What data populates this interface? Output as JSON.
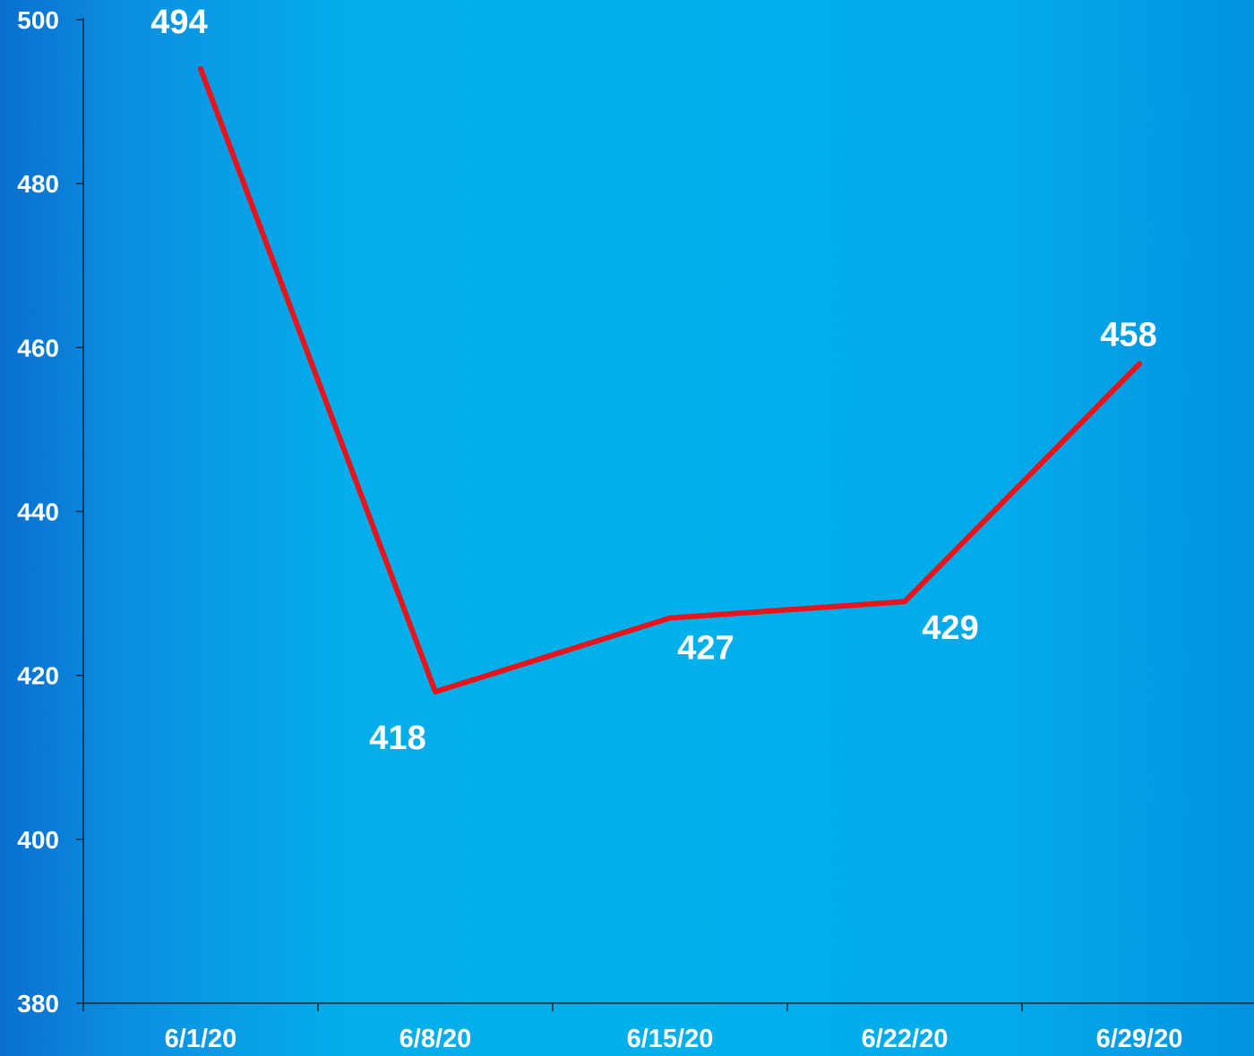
{
  "chart_data": {
    "type": "line",
    "title": "",
    "xlabel": "",
    "ylabel": "",
    "categories": [
      "6/1/20",
      "6/8/20",
      "6/15/20",
      "6/22/20",
      "6/29/20"
    ],
    "series": [
      {
        "values": [
          494,
          418,
          427,
          429,
          458
        ],
        "color": "#e8141c"
      }
    ],
    "data_labels": [
      "494",
      "418",
      "427",
      "429",
      "458"
    ],
    "ylim": [
      380,
      500
    ],
    "yticks": [
      "380",
      "400",
      "420",
      "440",
      "460",
      "480",
      "500"
    ],
    "grid": false,
    "legend": "none",
    "colors": {
      "background_center": "#02b0ec",
      "background_edge": "#0a6fcf",
      "line": "#e8141c",
      "text": "#ffffff",
      "axis": "#1a2a3a"
    }
  }
}
